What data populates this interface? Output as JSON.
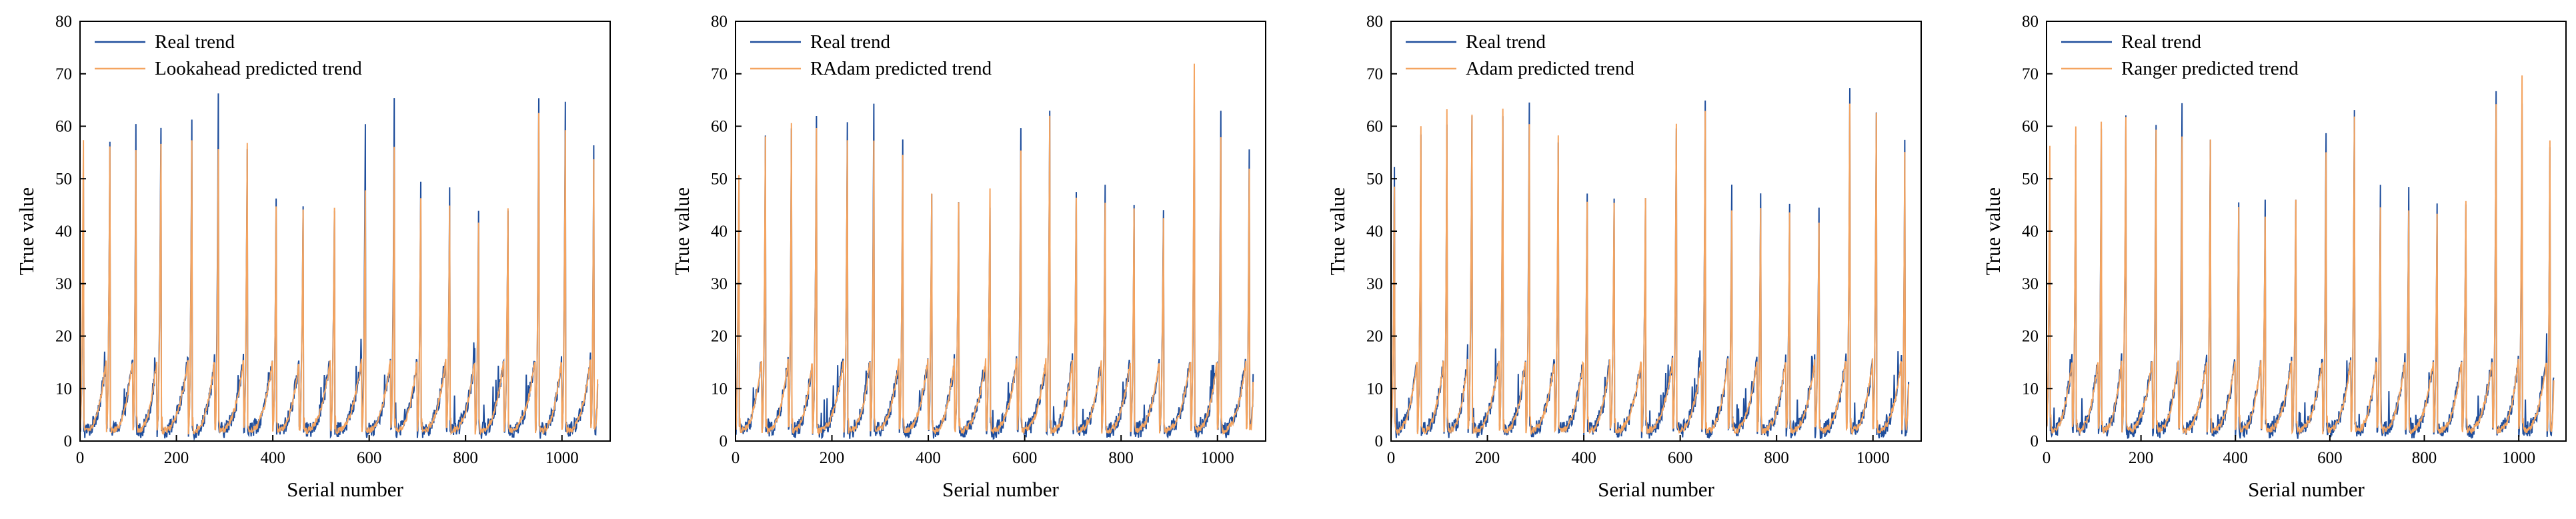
{
  "chart_data": [
    {
      "type": "line",
      "xlabel": "Serial number",
      "ylabel": "True value",
      "xlim": [
        0,
        1100
      ],
      "ylim": [
        0,
        80
      ],
      "xticks": [
        0,
        200,
        400,
        600,
        800,
        1000
      ],
      "yticks": [
        0,
        10,
        20,
        30,
        40,
        50,
        60,
        70,
        80
      ],
      "legend_position": "top-left",
      "series": [
        {
          "name": "Real trend",
          "color": "#1f4e9c"
        },
        {
          "name": "Lookahead predicted trend",
          "color": "#f4a460"
        }
      ],
      "cycle_starts": [
        0,
        55,
        110,
        160,
        225,
        280,
        340,
        400,
        455,
        520,
        585,
        645,
        700,
        760,
        820,
        880,
        945,
        1000,
        1060
      ],
      "cycle_peaks": [
        51,
        57,
        61,
        61,
        61,
        65,
        57,
        46,
        45,
        45,
        59,
        64,
        48,
        48,
        44,
        44,
        66,
        64,
        57
      ],
      "pred_peaks": [
        58,
        56,
        56,
        57,
        58,
        56,
        57,
        44,
        44,
        45,
        48,
        56,
        47,
        45,
        42,
        44,
        62,
        60,
        54
      ]
    },
    {
      "type": "line",
      "xlabel": "Serial number",
      "ylabel": "True value",
      "xlim": [
        0,
        1100
      ],
      "ylim": [
        0,
        80
      ],
      "xticks": [
        0,
        200,
        400,
        600,
        800,
        1000
      ],
      "yticks": [
        0,
        10,
        20,
        30,
        40,
        50,
        60,
        70,
        80
      ],
      "legend_position": "top-left",
      "series": [
        {
          "name": "Real trend",
          "color": "#1f4e9c"
        },
        {
          "name": "RAdam predicted trend",
          "color": "#f4a460"
        }
      ],
      "cycle_starts": [
        0,
        55,
        110,
        160,
        225,
        280,
        340,
        400,
        455,
        520,
        585,
        645,
        700,
        760,
        820,
        880,
        945,
        1000,
        1060
      ],
      "cycle_peaks": [
        51,
        57,
        61,
        61,
        61,
        65,
        57,
        46,
        45,
        45,
        59,
        64,
        48,
        48,
        44,
        44,
        66,
        64,
        57
      ],
      "pred_peaks": [
        50,
        58,
        60,
        59,
        58,
        58,
        55,
        47,
        46,
        48,
        55,
        62,
        46,
        45,
        45,
        42,
        72,
        58,
        52
      ]
    },
    {
      "type": "line",
      "xlabel": "Serial number",
      "ylabel": "True value",
      "xlim": [
        0,
        1100
      ],
      "ylim": [
        0,
        80
      ],
      "xticks": [
        0,
        200,
        400,
        600,
        800,
        1000
      ],
      "yticks": [
        0,
        10,
        20,
        30,
        40,
        50,
        60,
        70,
        80
      ],
      "legend_position": "top-left",
      "series": [
        {
          "name": "Real trend",
          "color": "#1f4e9c"
        },
        {
          "name": "Adam predicted trend",
          "color": "#f4a460"
        }
      ],
      "cycle_starts": [
        0,
        55,
        110,
        160,
        225,
        280,
        340,
        400,
        455,
        520,
        585,
        645,
        700,
        760,
        820,
        880,
        945,
        1000,
        1060
      ],
      "cycle_peaks": [
        51,
        57,
        61,
        61,
        61,
        65,
        57,
        46,
        45,
        45,
        59,
        64,
        48,
        48,
        44,
        44,
        66,
        64,
        57
      ],
      "pred_peaks": [
        48,
        60,
        63,
        62,
        64,
        60,
        59,
        46,
        45,
        47,
        61,
        63,
        44,
        45,
        43,
        41,
        65,
        62,
        55
      ]
    },
    {
      "type": "line",
      "xlabel": "Serial number",
      "ylabel": "True value",
      "xlim": [
        0,
        1100
      ],
      "ylim": [
        0,
        80
      ],
      "xticks": [
        0,
        200,
        400,
        600,
        800,
        1000
      ],
      "yticks": [
        0,
        10,
        20,
        30,
        40,
        50,
        60,
        70,
        80
      ],
      "legend_position": "top-left",
      "series": [
        {
          "name": "Real trend",
          "color": "#1f4e9c"
        },
        {
          "name": "Ranger predicted trend",
          "color": "#f4a460"
        }
      ],
      "cycle_starts": [
        0,
        55,
        110,
        160,
        225,
        280,
        340,
        400,
        455,
        520,
        585,
        645,
        700,
        760,
        820,
        880,
        945,
        1000,
        1060
      ],
      "cycle_peaks": [
        51,
        57,
        61,
        61,
        61,
        65,
        57,
        46,
        45,
        45,
        59,
        64,
        48,
        48,
        44,
        44,
        66,
        64,
        57
      ],
      "pred_peaks": [
        56,
        60,
        61,
        62,
        60,
        58,
        57,
        44,
        43,
        46,
        55,
        62,
        45,
        44,
        43,
        45,
        64,
        70,
        57
      ]
    }
  ]
}
